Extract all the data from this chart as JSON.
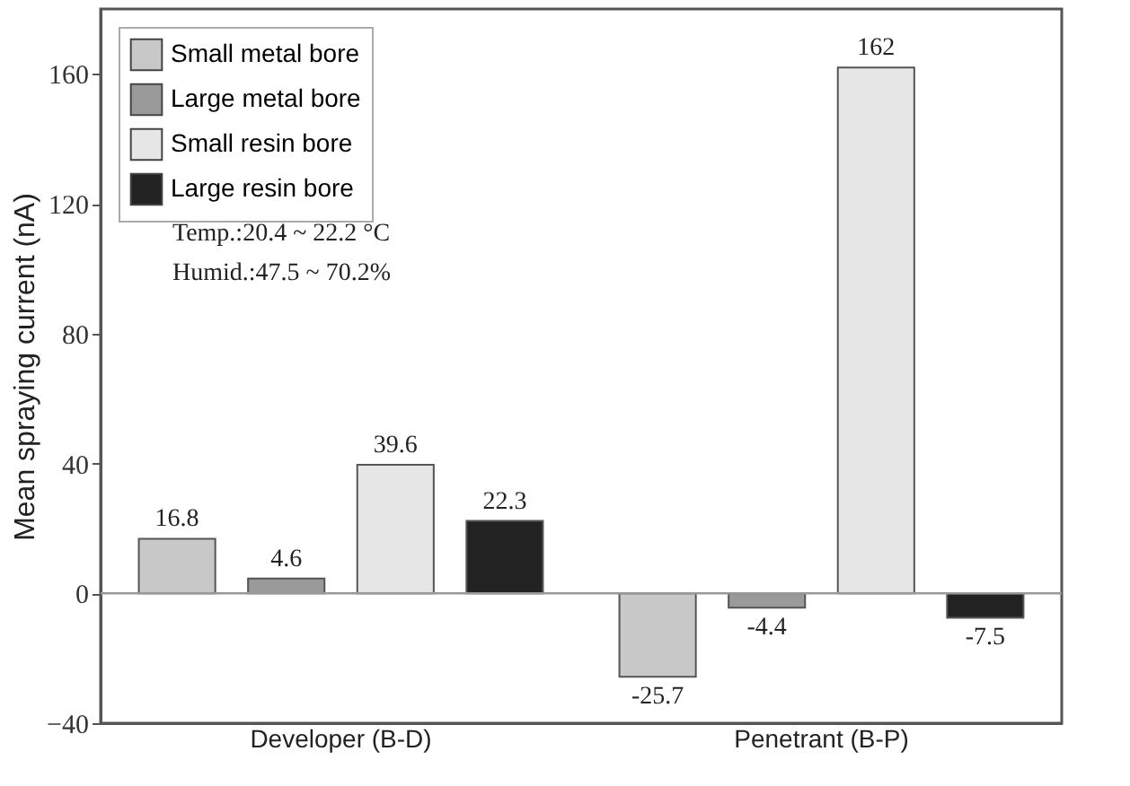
{
  "chart_data": {
    "type": "bar",
    "ylabel": "Mean spraying current   (nA)",
    "categories": [
      "Developer (B-D)",
      "Penetrant (B-P)"
    ],
    "series": [
      {
        "name": "Small metal bore",
        "color": "#c8c8c8",
        "values": [
          16.8,
          -25.7
        ]
      },
      {
        "name": "Large metal bore",
        "color": "#9a9a9a",
        "values": [
          4.6,
          -4.4
        ]
      },
      {
        "name": "Small resin bore",
        "color": "#e6e6e6",
        "values": [
          39.6,
          162
        ]
      },
      {
        "name": "Large resin bore",
        "color": "#222222",
        "values": [
          22.3,
          -7.5
        ]
      }
    ],
    "ylim": [
      -40,
      180
    ],
    "yticks": [
      -40,
      0,
      40,
      80,
      120,
      160
    ],
    "ref_lines": [
      {
        "axis": "y",
        "value": 0,
        "color": "#999999"
      }
    ],
    "annotations": [
      "Temp.:20.4 ~ 22.2 °C",
      "Humid.:47.5 ~ 70.2%"
    ],
    "data_labels": true,
    "legend": "top left"
  }
}
